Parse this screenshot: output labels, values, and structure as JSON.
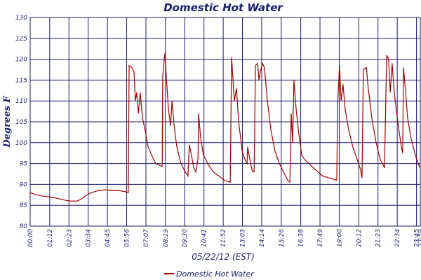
{
  "chart_data": {
    "type": "line",
    "title": "Domestic Hot Water",
    "y_label": "Degrees F",
    "x_label": "05/22/12 (EST)",
    "x": [
      0,
      18,
      44,
      70,
      96,
      122,
      148,
      173,
      189,
      204,
      225,
      251,
      277,
      303,
      329,
      355,
      362,
      365,
      375,
      383,
      388,
      393,
      399,
      406,
      414,
      424,
      435,
      448,
      463,
      479,
      487,
      489,
      497,
      502,
      510,
      518,
      523,
      531,
      541,
      556,
      572,
      582,
      587,
      595,
      603,
      611,
      619,
      621,
      629,
      639,
      655,
      675,
      696,
      717,
      738,
      743,
      753,
      761,
      769,
      782,
      792,
      800,
      802,
      810,
      820,
      826,
      831,
      839,
      844,
      849,
      857,
      864,
      875,
      888,
      903,
      919,
      934,
      950,
      958,
      963,
      968,
      973,
      981,
      991,
      1002,
      1012,
      1027,
      1053,
      1079,
      1105,
      1131,
      1134,
      1141,
      1147,
      1154,
      1162,
      1175,
      1190,
      1206,
      1219,
      1224,
      1229,
      1240,
      1247,
      1260,
      1276,
      1291,
      1307,
      1315,
      1322,
      1328,
      1335,
      1343,
      1356,
      1369,
      1374,
      1377,
      1385,
      1392,
      1405,
      1421,
      1434,
      1439
    ],
    "series": [
      {
        "name": "Domestic Hot Water",
        "color": "#a00000",
        "values": [
          88,
          87.6,
          87.2,
          87,
          86.7,
          86.3,
          86,
          86,
          86.5,
          87.3,
          88,
          88.5,
          88.7,
          88.5,
          88.5,
          88.2,
          88,
          118.5,
          118,
          117,
          110,
          112,
          107,
          112,
          106,
          103,
          99,
          97,
          95,
          94.5,
          94.3,
          116,
          121.5,
          116,
          108,
          104,
          110,
          104,
          99,
          95,
          93,
          92,
          99.5,
          97,
          94,
          93,
          96,
          107,
          101,
          97,
          95,
          93,
          92,
          91,
          90.5,
          120.5,
          110,
          113,
          105,
          98,
          96,
          95,
          99,
          96,
          93,
          93,
          118.5,
          119,
          115,
          117,
          119,
          118,
          110,
          103,
          98,
          95,
          93,
          91,
          90.5,
          107,
          100,
          115,
          108,
          102,
          97,
          96,
          95,
          93.5,
          92,
          91.5,
          91,
          109,
          118.5,
          110,
          114,
          108,
          103,
          99,
          96,
          93.5,
          91.5,
          117.5,
          118,
          113,
          106,
          100,
          96,
          94,
          121,
          120,
          112,
          119,
          112,
          105,
          99,
          97.5,
          118,
          112,
          106,
          101,
          97,
          94.5,
          94
        ]
      }
    ],
    "xlim": [
      0,
      1439
    ],
    "xticks": [
      {
        "value": 0,
        "label": "00:00"
      },
      {
        "value": 72,
        "label": "01:12"
      },
      {
        "value": 143,
        "label": "02:23"
      },
      {
        "value": 214,
        "label": "03:34"
      },
      {
        "value": 285,
        "label": "04:45"
      },
      {
        "value": 356,
        "label": "05:56"
      },
      {
        "value": 427,
        "label": "07:07"
      },
      {
        "value": 499,
        "label": "08:19"
      },
      {
        "value": 570,
        "label": "09:30"
      },
      {
        "value": 641,
        "label": "10:41"
      },
      {
        "value": 712,
        "label": "11:52"
      },
      {
        "value": 783,
        "label": "13:03"
      },
      {
        "value": 854,
        "label": "14:14"
      },
      {
        "value": 926,
        "label": "15:26"
      },
      {
        "value": 998,
        "label": "16:38"
      },
      {
        "value": 1069,
        "label": "17:49"
      },
      {
        "value": 1140,
        "label": "19:00"
      },
      {
        "value": 1212,
        "label": "20:12"
      },
      {
        "value": 1283,
        "label": "21:23"
      },
      {
        "value": 1354,
        "label": "22:34"
      },
      {
        "value": 1425,
        "label": "23:45"
      },
      {
        "value": 1439,
        "label": "23:59"
      }
    ],
    "ylim": [
      80,
      130
    ],
    "yticks": [
      80,
      85,
      90,
      95,
      100,
      105,
      110,
      115,
      120,
      125,
      130
    ],
    "grid": true
  }
}
